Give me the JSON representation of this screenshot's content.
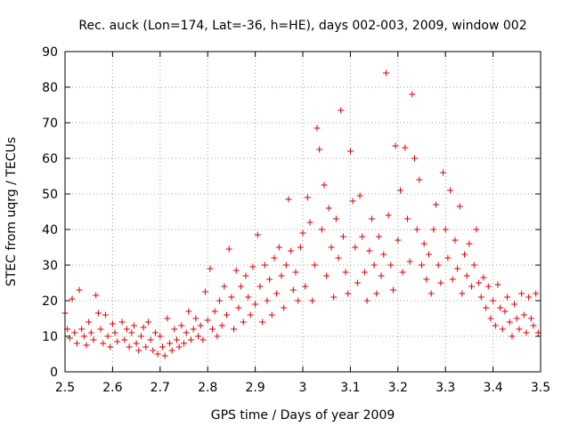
{
  "chart_data": {
    "type": "scatter",
    "title": "Rec. auck (Lon=174, Lat=-36, h=HE), days 002-003, 2009, window 002",
    "xlabel": "GPS time / Days of year 2009",
    "ylabel": "STEC from uqrg / TECUs",
    "xlim": [
      2.5,
      3.5
    ],
    "ylim": [
      0,
      90
    ],
    "xticks": [
      "2.5",
      "2.6",
      "2.7",
      "2.8",
      "2.9",
      "3",
      "3.1",
      "3.2",
      "3.3",
      "3.4",
      "3.5"
    ],
    "yticks": [
      "0",
      "10",
      "20",
      "30",
      "40",
      "50",
      "60",
      "70",
      "80",
      "90"
    ],
    "marker": "+",
    "color": "#dd0000",
    "series": [
      {
        "name": "STEC",
        "points": [
          [
            2.5,
            16.5
          ],
          [
            2.505,
            12
          ],
          [
            2.51,
            9.5
          ],
          [
            2.515,
            20.5
          ],
          [
            2.52,
            11
          ],
          [
            2.525,
            8
          ],
          [
            2.53,
            23
          ],
          [
            2.535,
            12
          ],
          [
            2.54,
            10
          ],
          [
            2.545,
            7.5
          ],
          [
            2.55,
            14
          ],
          [
            2.555,
            11
          ],
          [
            2.56,
            9
          ],
          [
            2.565,
            21.5
          ],
          [
            2.57,
            16.5
          ],
          [
            2.575,
            12
          ],
          [
            2.58,
            8
          ],
          [
            2.585,
            16
          ],
          [
            2.59,
            10
          ],
          [
            2.595,
            7
          ],
          [
            2.6,
            13.5
          ],
          [
            2.605,
            11
          ],
          [
            2.61,
            8.5
          ],
          [
            2.62,
            14
          ],
          [
            2.625,
            9
          ],
          [
            2.63,
            12
          ],
          [
            2.635,
            7
          ],
          [
            2.64,
            11
          ],
          [
            2.645,
            13
          ],
          [
            2.65,
            8
          ],
          [
            2.655,
            6
          ],
          [
            2.66,
            10
          ],
          [
            2.665,
            12.5
          ],
          [
            2.67,
            7
          ],
          [
            2.675,
            14
          ],
          [
            2.68,
            9
          ],
          [
            2.685,
            6
          ],
          [
            2.69,
            11
          ],
          [
            2.695,
            5
          ],
          [
            2.7,
            10
          ],
          [
            2.705,
            7
          ],
          [
            2.71,
            4.5
          ],
          [
            2.715,
            15
          ],
          [
            2.72,
            8
          ],
          [
            2.725,
            6
          ],
          [
            2.73,
            12
          ],
          [
            2.735,
            9
          ],
          [
            2.74,
            7
          ],
          [
            2.745,
            13
          ],
          [
            2.75,
            8
          ],
          [
            2.755,
            11
          ],
          [
            2.76,
            17
          ],
          [
            2.765,
            9
          ],
          [
            2.77,
            12
          ],
          [
            2.775,
            15
          ],
          [
            2.78,
            10
          ],
          [
            2.785,
            13
          ],
          [
            2.79,
            9
          ],
          [
            2.795,
            22.5
          ],
          [
            2.8,
            14.5
          ],
          [
            2.805,
            29
          ],
          [
            2.81,
            12
          ],
          [
            2.815,
            17
          ],
          [
            2.82,
            10
          ],
          [
            2.825,
            20
          ],
          [
            2.83,
            13
          ],
          [
            2.835,
            24
          ],
          [
            2.84,
            16
          ],
          [
            2.845,
            34.5
          ],
          [
            2.85,
            21
          ],
          [
            2.855,
            12
          ],
          [
            2.86,
            28.5
          ],
          [
            2.865,
            18
          ],
          [
            2.87,
            24
          ],
          [
            2.875,
            14
          ],
          [
            2.88,
            27
          ],
          [
            2.885,
            21
          ],
          [
            2.89,
            16
          ],
          [
            2.895,
            29.5
          ],
          [
            2.9,
            19
          ],
          [
            2.905,
            38.5
          ],
          [
            2.91,
            24
          ],
          [
            2.915,
            14
          ],
          [
            2.92,
            30
          ],
          [
            2.925,
            20
          ],
          [
            2.93,
            26
          ],
          [
            2.935,
            16
          ],
          [
            2.94,
            32
          ],
          [
            2.945,
            22
          ],
          [
            2.95,
            35
          ],
          [
            2.955,
            27
          ],
          [
            2.96,
            18
          ],
          [
            2.965,
            30
          ],
          [
            2.97,
            48.5
          ],
          [
            2.975,
            34
          ],
          [
            2.98,
            23
          ],
          [
            2.985,
            28
          ],
          [
            2.99,
            20
          ],
          [
            2.995,
            35
          ],
          [
            3.0,
            39
          ],
          [
            3.005,
            24
          ],
          [
            3.01,
            49
          ],
          [
            3.015,
            42
          ],
          [
            3.02,
            20
          ],
          [
            3.025,
            30
          ],
          [
            3.03,
            68.5
          ],
          [
            3.035,
            62.5
          ],
          [
            3.04,
            40
          ],
          [
            3.045,
            52.5
          ],
          [
            3.05,
            27
          ],
          [
            3.055,
            46
          ],
          [
            3.06,
            35
          ],
          [
            3.065,
            21
          ],
          [
            3.07,
            43
          ],
          [
            3.075,
            32
          ],
          [
            3.08,
            73.5
          ],
          [
            3.085,
            38
          ],
          [
            3.09,
            28
          ],
          [
            3.095,
            22
          ],
          [
            3.1,
            62
          ],
          [
            3.105,
            48
          ],
          [
            3.11,
            35
          ],
          [
            3.115,
            25
          ],
          [
            3.12,
            49.5
          ],
          [
            3.125,
            38
          ],
          [
            3.13,
            28
          ],
          [
            3.135,
            20
          ],
          [
            3.14,
            34
          ],
          [
            3.145,
            43
          ],
          [
            3.15,
            30
          ],
          [
            3.155,
            22
          ],
          [
            3.16,
            38
          ],
          [
            3.165,
            27
          ],
          [
            3.17,
            33
          ],
          [
            3.175,
            84
          ],
          [
            3.18,
            44
          ],
          [
            3.185,
            30
          ],
          [
            3.19,
            23
          ],
          [
            3.195,
            63.5
          ],
          [
            3.2,
            37
          ],
          [
            3.205,
            51
          ],
          [
            3.21,
            28
          ],
          [
            3.215,
            63
          ],
          [
            3.22,
            43
          ],
          [
            3.225,
            31
          ],
          [
            3.23,
            78
          ],
          [
            3.235,
            60
          ],
          [
            3.24,
            40
          ],
          [
            3.245,
            54
          ],
          [
            3.25,
            30
          ],
          [
            3.255,
            36
          ],
          [
            3.26,
            26
          ],
          [
            3.265,
            33
          ],
          [
            3.27,
            22
          ],
          [
            3.275,
            40
          ],
          [
            3.28,
            47
          ],
          [
            3.285,
            30
          ],
          [
            3.29,
            25
          ],
          [
            3.295,
            56
          ],
          [
            3.3,
            40
          ],
          [
            3.305,
            32
          ],
          [
            3.31,
            51
          ],
          [
            3.315,
            26
          ],
          [
            3.32,
            37
          ],
          [
            3.325,
            29
          ],
          [
            3.33,
            46.5
          ],
          [
            3.335,
            22
          ],
          [
            3.34,
            33
          ],
          [
            3.345,
            27
          ],
          [
            3.35,
            36
          ],
          [
            3.355,
            24
          ],
          [
            3.36,
            30
          ],
          [
            3.365,
            40
          ],
          [
            3.37,
            25
          ],
          [
            3.375,
            21
          ],
          [
            3.38,
            26.5
          ],
          [
            3.385,
            18
          ],
          [
            3.39,
            24
          ],
          [
            3.395,
            15
          ],
          [
            3.4,
            20
          ],
          [
            3.405,
            13
          ],
          [
            3.41,
            24.5
          ],
          [
            3.415,
            18
          ],
          [
            3.42,
            12
          ],
          [
            3.425,
            17
          ],
          [
            3.43,
            21
          ],
          [
            3.435,
            14
          ],
          [
            3.44,
            10
          ],
          [
            3.445,
            19
          ],
          [
            3.45,
            15
          ],
          [
            3.455,
            12
          ],
          [
            3.46,
            22
          ],
          [
            3.465,
            16
          ],
          [
            3.47,
            11
          ],
          [
            3.475,
            21
          ],
          [
            3.48,
            15
          ],
          [
            3.485,
            13
          ],
          [
            3.49,
            22
          ],
          [
            3.495,
            11
          ]
        ]
      }
    ]
  }
}
